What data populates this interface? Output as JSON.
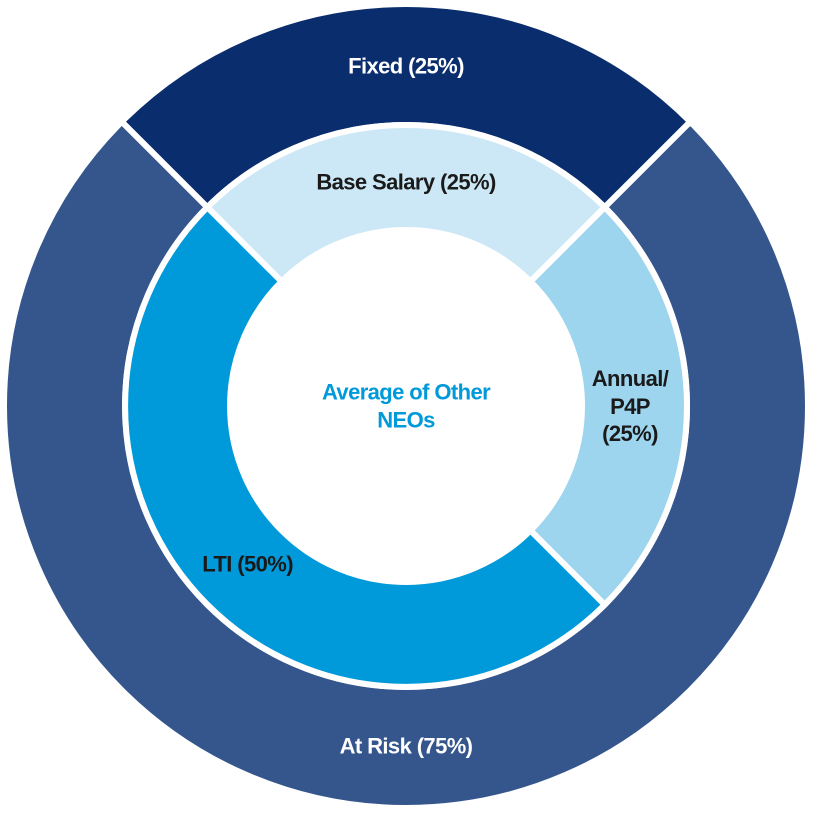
{
  "chart_data": {
    "type": "donut",
    "center_label": "Average of Other\nNEOs",
    "center_label_color": "#0099d9",
    "rings": [
      {
        "values": [
          25,
          75
        ],
        "value_labels": [
          "Fixed (25%)",
          "At Risk (75%)"
        ],
        "colors": [
          "#0a2d6e",
          "#34568c"
        ],
        "label_color": "#ffffff"
      },
      {
        "values": [
          25,
          25,
          50
        ],
        "value_labels": [
          "Base Salary (25%)",
          "Annual/\nP4P\n(25%)",
          "LTI (50%)"
        ],
        "colors": [
          "#cce8f6",
          "#9dd5ef",
          "#0099d9"
        ],
        "label_color": "#1a1a1a"
      }
    ]
  }
}
